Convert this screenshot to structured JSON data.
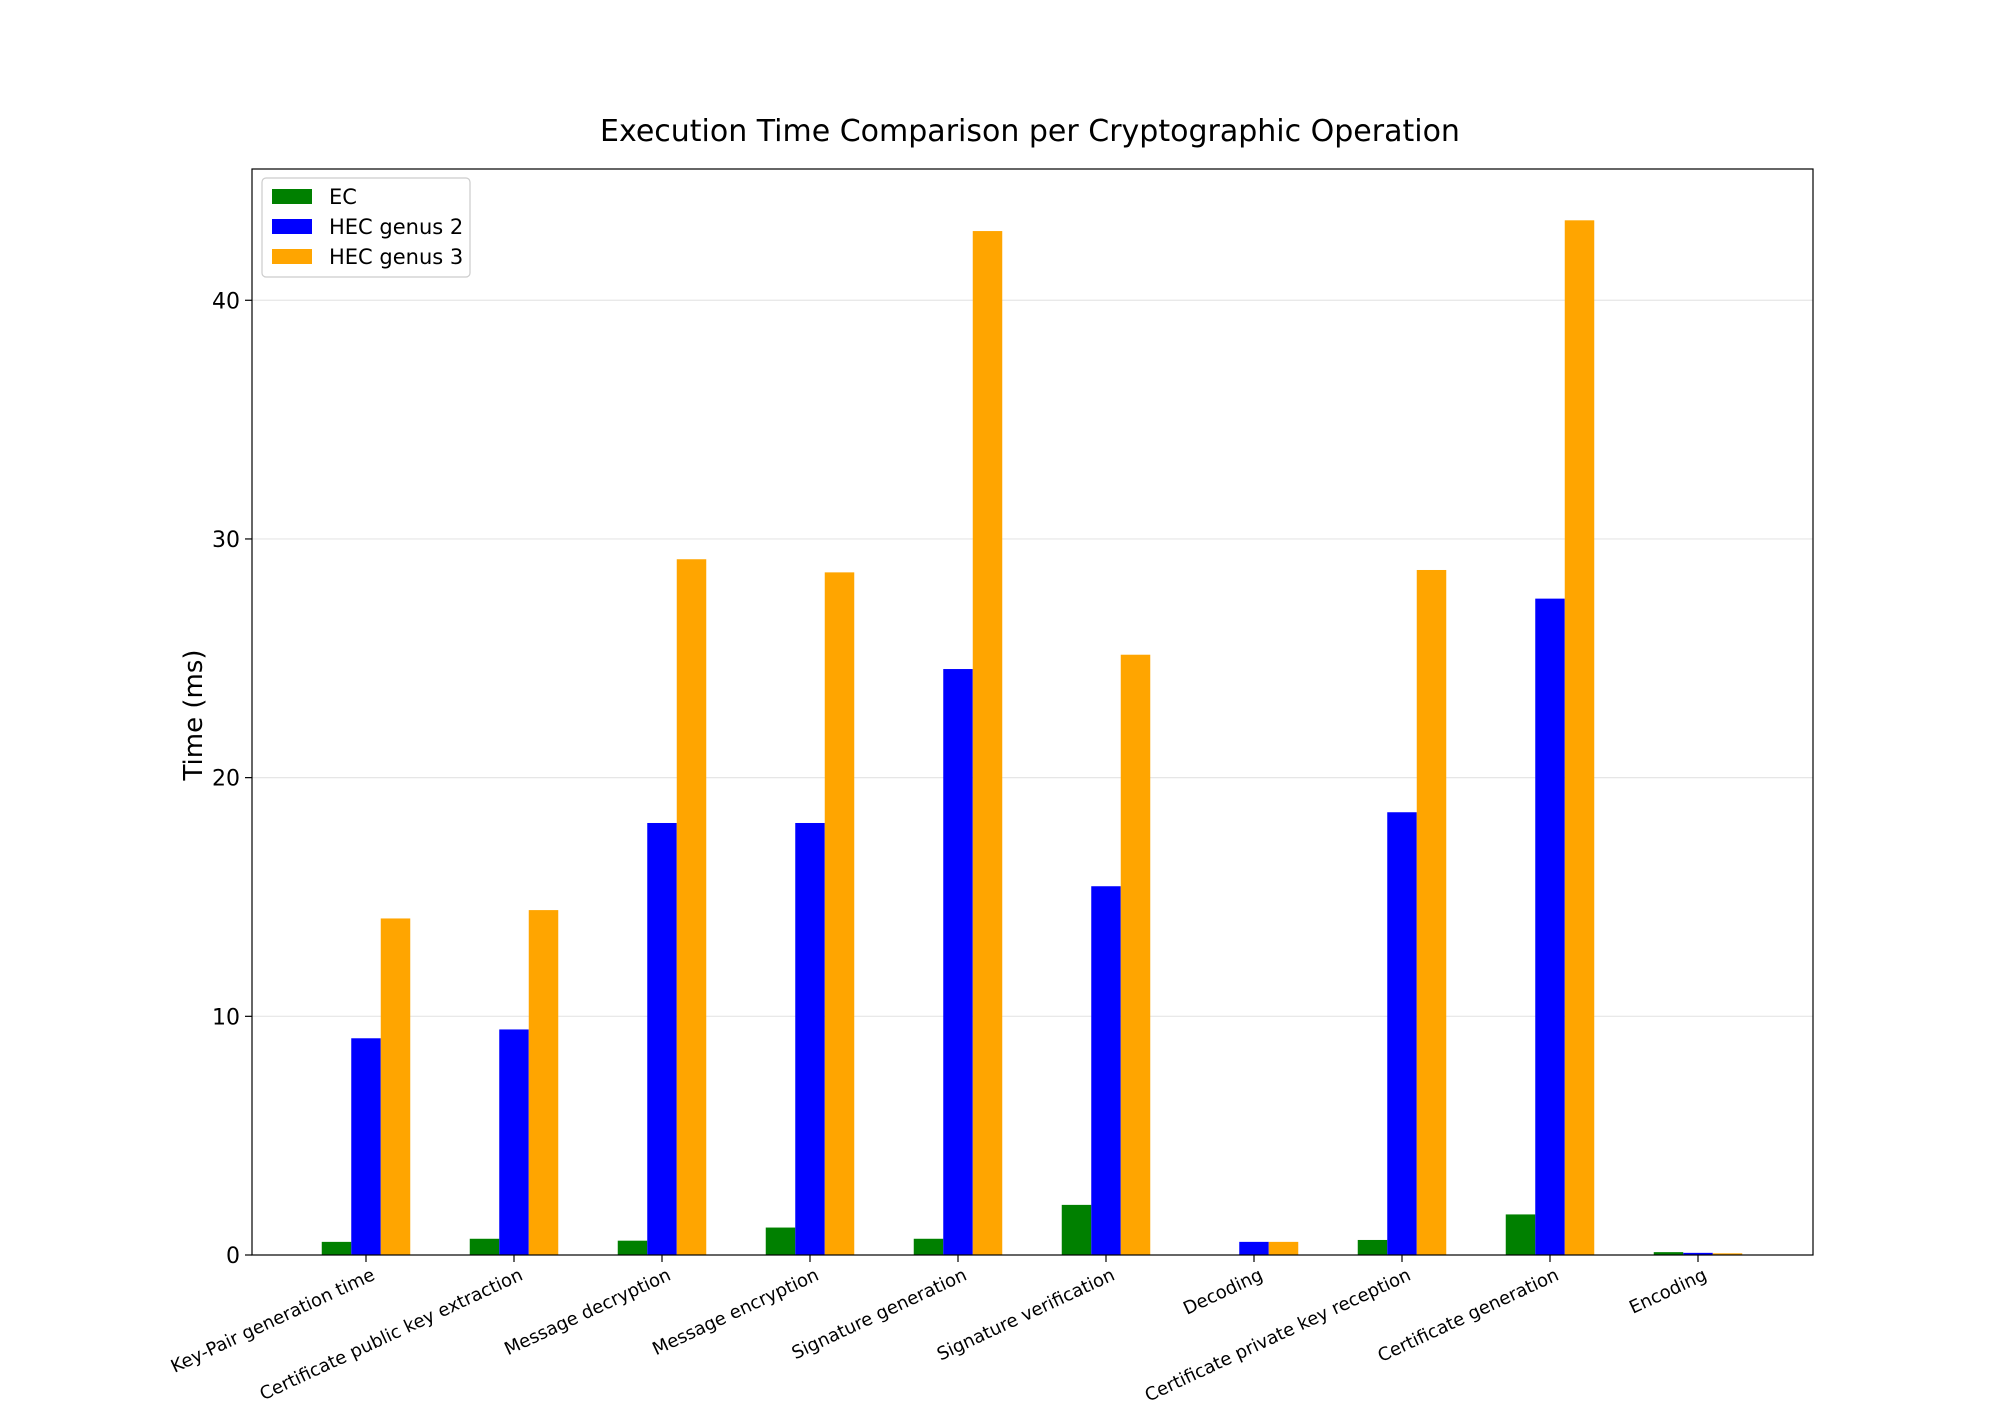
{
  "chart_data": {
    "type": "bar",
    "title": "Execution Time Comparison per Cryptographic Operation",
    "xlabel": "",
    "ylabel": "Time (ms)",
    "categories": [
      "Key-Pair generation time",
      "Certificate public key extraction",
      "Message decryption",
      "Message encryption",
      "Signature generation",
      "Signature verification",
      "Decoding",
      "Certificate private key reception",
      "Certificate generation",
      "Encoding"
    ],
    "series": [
      {
        "name": "EC",
        "color": "#008000",
        "values": [
          0.55,
          0.68,
          0.6,
          1.15,
          0.68,
          2.1,
          0.0,
          0.63,
          1.7,
          0.12
        ]
      },
      {
        "name": "HEC genus 2",
        "color": "#0000ff",
        "values": [
          9.08,
          9.45,
          18.1,
          18.1,
          24.55,
          15.45,
          0.55,
          18.55,
          27.5,
          0.09
        ]
      },
      {
        "name": "HEC genus 3",
        "color": "#ffa500",
        "values": [
          14.1,
          14.45,
          29.15,
          28.6,
          42.9,
          25.15,
          0.55,
          28.7,
          43.35,
          0.07
        ]
      }
    ],
    "ylim": [
      0,
      45.5
    ],
    "yticks": [
      0,
      10,
      20,
      30,
      40
    ],
    "grid": "horizontal",
    "legend_position": "top-left"
  }
}
